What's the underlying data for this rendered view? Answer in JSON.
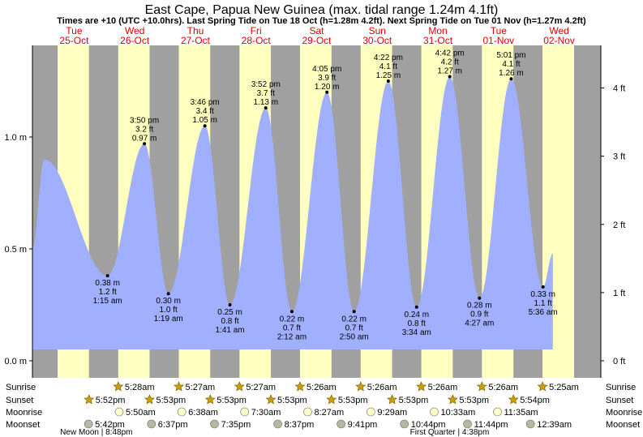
{
  "title": "East Cape, Papua New Guinea (max. tidal range 1.24m 4.1ft)",
  "subtitle": "Times are +10 (UTC +10.0hrs). Last Spring Tide on Tue 18 Oct (h=1.28m 4.2ft). Next Spring Tide on Tue 01 Nov (h=1.27m 4.2ft)",
  "colors": {
    "day": "#ffffc0",
    "night": "#a0a0a0",
    "tide": "#a0b0ff",
    "dayLabel": "#e00000",
    "star": "#c8a000",
    "moonFill": "#ffffc8",
    "moonsetFill": "#b8b8a0"
  },
  "chart_data": {
    "type": "area",
    "title": "East Cape, Papua New Guinea (max. tidal range 1.24m 4.1ft)",
    "ylabel_left": "m",
    "ylabel_right": "ft",
    "ylim_m": [
      0,
      1.38
    ],
    "y_ticks_m": [
      {
        "v": 0.0,
        "label": "0.0 m"
      },
      {
        "v": 0.5,
        "label": "0.5 m"
      },
      {
        "v": 1.0,
        "label": "1.0 m"
      }
    ],
    "y_ticks_ft": [
      {
        "v": 0,
        "label": "0 ft"
      },
      {
        "v": 1,
        "label": "1 ft"
      },
      {
        "v": 2,
        "label": "2 ft"
      },
      {
        "v": 3,
        "label": "3 ft"
      },
      {
        "v": 4,
        "label": "4 ft"
      }
    ],
    "x_range_hours": [
      -4.5,
      220.5
    ],
    "x_unit": "hours after midnight starting Tue 25-Oct",
    "days": [
      {
        "name": "Tue",
        "date": "25-Oct",
        "hour": 0
      },
      {
        "name": "Wed",
        "date": "26-Oct",
        "hour": 24
      },
      {
        "name": "Thu",
        "date": "27-Oct",
        "hour": 48
      },
      {
        "name": "Fri",
        "date": "28-Oct",
        "hour": 72
      },
      {
        "name": "Sat",
        "date": "29-Oct",
        "hour": 96
      },
      {
        "name": "Sun",
        "date": "30-Oct",
        "hour": 120
      },
      {
        "name": "Mon",
        "date": "31-Oct",
        "hour": 144
      },
      {
        "name": "Tue",
        "date": "01-Nov",
        "hour": 168
      },
      {
        "name": "Wed",
        "date": "02-Nov",
        "hour": 192
      }
    ],
    "nights": [
      [
        -4.5,
        5.47
      ],
      [
        17.87,
        29.45
      ],
      [
        41.88,
        53.45
      ],
      [
        65.88,
        77.45
      ],
      [
        89.88,
        101.43
      ],
      [
        113.88,
        125.43
      ],
      [
        137.88,
        149.43
      ],
      [
        161.88,
        173.43
      ],
      [
        185.9,
        197.42
      ],
      [
        209.9,
        220.5
      ]
    ],
    "tide_series": [
      {
        "hour": -4.5,
        "m": 0.5
      },
      {
        "hour": 0.2,
        "m": 0.9
      },
      {
        "hour": 25.25,
        "m": 0.38
      },
      {
        "hour": 39.83,
        "m": 0.97
      },
      {
        "hour": 49.32,
        "m": 0.3
      },
      {
        "hour": 63.77,
        "m": 1.05
      },
      {
        "hour": 73.68,
        "m": 0.25
      },
      {
        "hour": 87.87,
        "m": 1.13
      },
      {
        "hour": 98.2,
        "m": 0.22
      },
      {
        "hour": 112.08,
        "m": 1.2
      },
      {
        "hour": 122.83,
        "m": 0.22
      },
      {
        "hour": 136.37,
        "m": 1.25
      },
      {
        "hour": 147.57,
        "m": 0.24
      },
      {
        "hour": 160.7,
        "m": 1.27
      },
      {
        "hour": 172.45,
        "m": 0.28
      },
      {
        "hour": 185.02,
        "m": 1.26
      },
      {
        "hour": 197.6,
        "m": 0.33
      },
      {
        "hour": 201.5,
        "m": 0.48
      }
    ],
    "extremes": [
      {
        "hour": 25.25,
        "type": "low",
        "time": "1:15 am",
        "m": "0.38 m",
        "ft": "1.2 ft"
      },
      {
        "hour": 39.83,
        "type": "high",
        "time": "3:50 pm",
        "m": "0.97 m",
        "ft": "3.2 ft"
      },
      {
        "hour": 49.32,
        "type": "low",
        "time": "1:19 am",
        "m": "0.30 m",
        "ft": "1.0 ft"
      },
      {
        "hour": 63.77,
        "type": "high",
        "time": "3:46 pm",
        "m": "1.05 m",
        "ft": "3.4 ft"
      },
      {
        "hour": 73.68,
        "type": "low",
        "time": "1:41 am",
        "m": "0.25 m",
        "ft": "0.8 ft"
      },
      {
        "hour": 87.87,
        "type": "high",
        "time": "3:52 pm",
        "m": "1.13 m",
        "ft": "3.7 ft"
      },
      {
        "hour": 98.2,
        "type": "low",
        "time": "2:12 am",
        "m": "0.22 m",
        "ft": "0.7 ft"
      },
      {
        "hour": 112.08,
        "type": "high",
        "time": "4:05 pm",
        "m": "1.20 m",
        "ft": "3.9 ft"
      },
      {
        "hour": 122.83,
        "type": "low",
        "time": "2:50 am",
        "m": "0.22 m",
        "ft": "0.7 ft"
      },
      {
        "hour": 136.37,
        "type": "high",
        "time": "4:22 pm",
        "m": "1.25 m",
        "ft": "4.1 ft"
      },
      {
        "hour": 147.57,
        "type": "low",
        "time": "3:34 am",
        "m": "0.24 m",
        "ft": "0.8 ft"
      },
      {
        "hour": 160.7,
        "type": "high",
        "time": "4:42 pm",
        "m": "1.27 m",
        "ft": "4.2 ft"
      },
      {
        "hour": 172.45,
        "type": "low",
        "time": "4:27 am",
        "m": "0.28 m",
        "ft": "0.9 ft"
      },
      {
        "hour": 185.02,
        "type": "high",
        "time": "5:01 pm",
        "m": "1.26 m",
        "ft": "4.1 ft"
      },
      {
        "hour": 197.6,
        "type": "low",
        "time": "5:36 am",
        "m": "0.33 m",
        "ft": "1.1 ft"
      }
    ]
  },
  "events": {
    "row_labels": [
      "Sunrise",
      "Sunset",
      "Moonrise",
      "Moonset"
    ],
    "sunrise": [
      {
        "hour": 29.47,
        "time": "5:28am"
      },
      {
        "hour": 53.45,
        "time": "5:27am"
      },
      {
        "hour": 77.45,
        "time": "5:27am"
      },
      {
        "hour": 101.43,
        "time": "5:26am"
      },
      {
        "hour": 125.43,
        "time": "5:26am"
      },
      {
        "hour": 149.43,
        "time": "5:26am"
      },
      {
        "hour": 173.43,
        "time": "5:26am"
      },
      {
        "hour": 197.42,
        "time": "5:25am"
      }
    ],
    "sunset": [
      {
        "hour": 17.87,
        "time": "5:52pm"
      },
      {
        "hour": 41.88,
        "time": "5:53pm"
      },
      {
        "hour": 65.88,
        "time": "5:53pm"
      },
      {
        "hour": 89.88,
        "time": "5:53pm"
      },
      {
        "hour": 113.88,
        "time": "5:53pm"
      },
      {
        "hour": 137.88,
        "time": "5:53pm"
      },
      {
        "hour": 161.88,
        "time": "5:53pm"
      },
      {
        "hour": 185.9,
        "time": "5:54pm"
      }
    ],
    "moonrise": [
      {
        "hour": 29.83,
        "time": "5:50am"
      },
      {
        "hour": 54.63,
        "time": "6:38am"
      },
      {
        "hour": 79.5,
        "time": "7:30am"
      },
      {
        "hour": 104.45,
        "time": "8:27am"
      },
      {
        "hour": 129.48,
        "time": "9:29am"
      },
      {
        "hour": 154.55,
        "time": "10:33am"
      },
      {
        "hour": 179.58,
        "time": "11:35am"
      }
    ],
    "moonset": [
      {
        "hour": 17.7,
        "time": "5:42pm"
      },
      {
        "hour": 42.62,
        "time": "6:37pm"
      },
      {
        "hour": 67.58,
        "time": "7:35pm"
      },
      {
        "hour": 92.62,
        "time": "8:37pm"
      },
      {
        "hour": 117.68,
        "time": "9:41pm"
      },
      {
        "hour": 142.73,
        "time": "10:44pm"
      },
      {
        "hour": 167.73,
        "time": "11:44pm"
      },
      {
        "hour": 192.65,
        "time": "12:39am"
      }
    ],
    "phases": [
      {
        "label": "New Moon | 8:48pm",
        "hour": 20.8
      },
      {
        "label": "First Quarter | 4:38pm",
        "hour": 160.63
      }
    ]
  }
}
